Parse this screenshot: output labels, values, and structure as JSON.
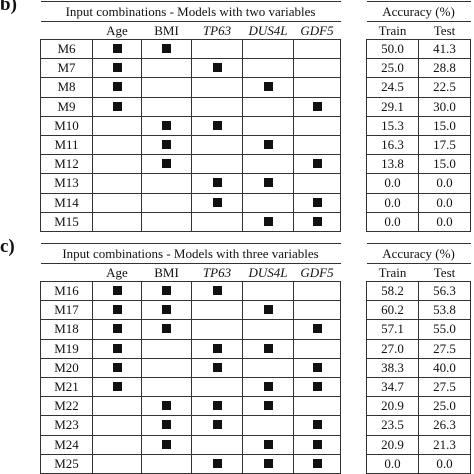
{
  "panel_b": {
    "label": "b)",
    "caption": "Input combinations - Models with two variables",
    "columns": [
      "Age",
      "BMI",
      "TP63",
      "DUS4L",
      "GDF5"
    ],
    "accuracy_caption": "Accuracy (%)",
    "accuracy_columns": [
      "Train",
      "Test"
    ],
    "rows": [
      {
        "model": "M6",
        "inputs": [
          1,
          1,
          0,
          0,
          0
        ],
        "train": "50.0",
        "test": "41.3"
      },
      {
        "model": "M7",
        "inputs": [
          1,
          0,
          1,
          0,
          0
        ],
        "train": "25.0",
        "test": "28.8"
      },
      {
        "model": "M8",
        "inputs": [
          1,
          0,
          0,
          1,
          0
        ],
        "train": "24.5",
        "test": "22.5"
      },
      {
        "model": "M9",
        "inputs": [
          1,
          0,
          0,
          0,
          1
        ],
        "train": "29.1",
        "test": "30.0"
      },
      {
        "model": "M10",
        "inputs": [
          0,
          1,
          1,
          0,
          0
        ],
        "train": "15.3",
        "test": "15.0"
      },
      {
        "model": "M11",
        "inputs": [
          0,
          1,
          0,
          1,
          0
        ],
        "train": "16.3",
        "test": "17.5"
      },
      {
        "model": "M12",
        "inputs": [
          0,
          1,
          0,
          0,
          1
        ],
        "train": "13.8",
        "test": "15.0"
      },
      {
        "model": "M13",
        "inputs": [
          0,
          0,
          1,
          1,
          0
        ],
        "train": "0.0",
        "test": "0.0"
      },
      {
        "model": "M14",
        "inputs": [
          0,
          0,
          1,
          0,
          1
        ],
        "train": "0.0",
        "test": "0.0"
      },
      {
        "model": "M15",
        "inputs": [
          0,
          0,
          0,
          1,
          1
        ],
        "train": "0.0",
        "test": "0.0"
      }
    ]
  },
  "panel_c": {
    "label": "c)",
    "caption": "Input combinations - Models with three variables",
    "columns": [
      "Age",
      "BMI",
      "TP63",
      "DUS4L",
      "GDF5"
    ],
    "accuracy_caption": "Accuracy (%)",
    "accuracy_columns": [
      "Train",
      "Test"
    ],
    "rows": [
      {
        "model": "M16",
        "inputs": [
          1,
          1,
          1,
          0,
          0
        ],
        "train": "58.2",
        "test": "56.3"
      },
      {
        "model": "M17",
        "inputs": [
          1,
          1,
          0,
          1,
          0
        ],
        "train": "60.2",
        "test": "53.8"
      },
      {
        "model": "M18",
        "inputs": [
          1,
          1,
          0,
          0,
          1
        ],
        "train": "57.1",
        "test": "55.0"
      },
      {
        "model": "M19",
        "inputs": [
          1,
          0,
          1,
          1,
          0
        ],
        "train": "27.0",
        "test": "27.5"
      },
      {
        "model": "M20",
        "inputs": [
          1,
          0,
          1,
          0,
          1
        ],
        "train": "38.3",
        "test": "40.0"
      },
      {
        "model": "M21",
        "inputs": [
          1,
          0,
          0,
          1,
          1
        ],
        "train": "34.7",
        "test": "27.5"
      },
      {
        "model": "M22",
        "inputs": [
          0,
          1,
          1,
          1,
          0
        ],
        "train": "20.9",
        "test": "25.0"
      },
      {
        "model": "M23",
        "inputs": [
          0,
          1,
          1,
          0,
          1
        ],
        "train": "23.5",
        "test": "26.3"
      },
      {
        "model": "M24",
        "inputs": [
          0,
          1,
          0,
          1,
          1
        ],
        "train": "20.9",
        "test": "21.3"
      },
      {
        "model": "M25",
        "inputs": [
          0,
          0,
          1,
          1,
          1
        ],
        "train": "0.0",
        "test": "0.0"
      }
    ]
  }
}
